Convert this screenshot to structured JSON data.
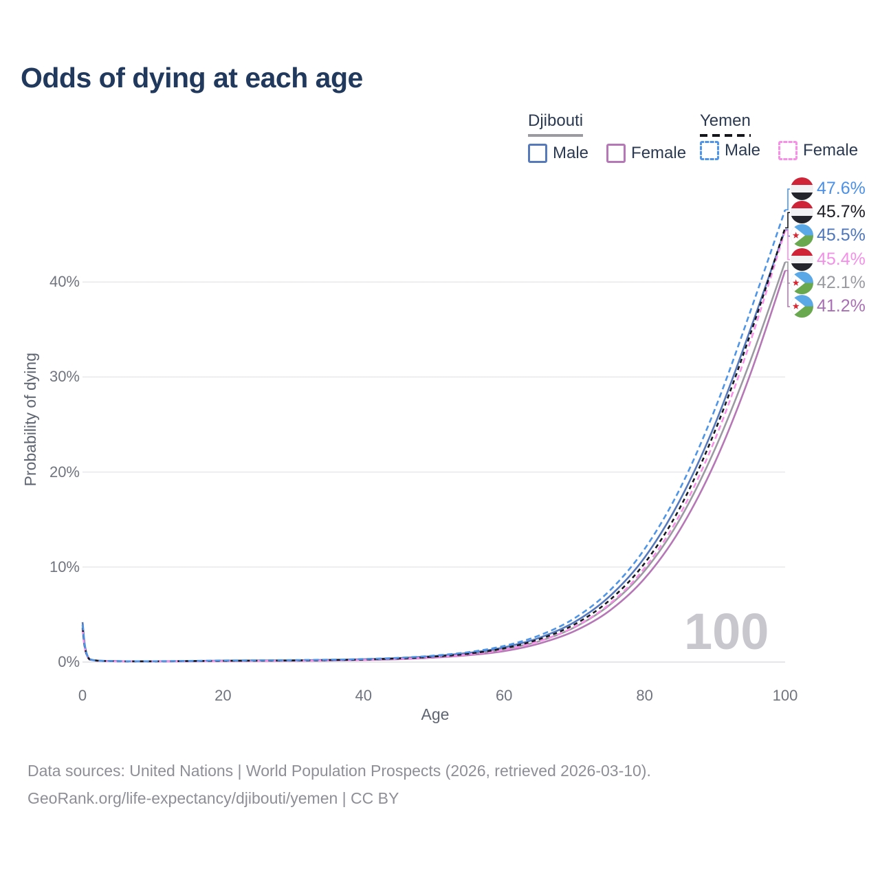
{
  "title": "Odds of dying at each age",
  "legend": {
    "groups": [
      {
        "label": "Djibouti",
        "line_style": "solid",
        "underline_color": "#9a9aa0",
        "items": [
          {
            "label": "Male",
            "color": "#5579bb"
          },
          {
            "label": "Female",
            "color": "#b577b5"
          }
        ]
      },
      {
        "label": "Yemen",
        "line_style": "dashed",
        "underline_color": "#15151c",
        "items": [
          {
            "label": "Male",
            "color": "#4e95e8"
          },
          {
            "label": "Female",
            "color": "#f78fe7"
          }
        ]
      }
    ]
  },
  "watermark": "100",
  "footer": {
    "line1": "Data sources: United Nations | World Population Prospects (2026, retrieved 2026-03-10).",
    "line2": "GeoRank.org/life-expectancy/djibouti/yemen | CC BY"
  },
  "chart_data": {
    "type": "line",
    "title": "Odds of dying at each age",
    "xlabel": "Age",
    "ylabel": "Probability of dying",
    "xlim": [
      0,
      100
    ],
    "ylim_pct": [
      0,
      48
    ],
    "x_ticks": [
      0,
      20,
      40,
      60,
      80,
      100
    ],
    "y_ticks_pct": [
      0,
      10,
      20,
      30,
      40
    ],
    "y_tick_labels": [
      "0%",
      "10%",
      "20%",
      "30%",
      "40%"
    ],
    "grid": "horizontal",
    "legend_position": "top-right",
    "ages": [
      0,
      1,
      5,
      10,
      15,
      20,
      25,
      30,
      35,
      40,
      45,
      50,
      55,
      60,
      65,
      70,
      75,
      80,
      85,
      90,
      95,
      100
    ],
    "series": [
      {
        "name": "Yemen Male",
        "country": "Yemen",
        "sex": "male",
        "flag": "yemen",
        "line_color": "#4e95e8",
        "label_color": "#4a90e8",
        "dash": "8 5",
        "end_label": "47.6%",
        "end_value_pct": 47.6,
        "values_pct": [
          3.9,
          0.3,
          0.1,
          0.09,
          0.12,
          0.17,
          0.19,
          0.21,
          0.25,
          0.32,
          0.45,
          0.68,
          1.05,
          1.7,
          2.8,
          4.6,
          7.5,
          11.9,
          18.2,
          26.6,
          36.8,
          47.6
        ]
      },
      {
        "name": "Yemen Both sexes",
        "country": "Yemen",
        "sex": "both",
        "flag": "yemen",
        "line_color": "#17171f",
        "label_color": "#1b1b22",
        "dash": "6 5",
        "end_label": "45.7%",
        "end_value_pct": 45.7,
        "values_pct": [
          3.6,
          0.28,
          0.09,
          0.08,
          0.1,
          0.13,
          0.15,
          0.17,
          0.21,
          0.27,
          0.38,
          0.57,
          0.89,
          1.45,
          2.4,
          3.95,
          6.5,
          10.4,
          16.2,
          24.3,
          34.4,
          45.7
        ]
      },
      {
        "name": "Djibouti Male",
        "country": "Djibouti",
        "sex": "male",
        "flag": "djibouti",
        "line_color": "#5579bb",
        "label_color": "#4d76bd",
        "dash": null,
        "end_label": "45.5%",
        "end_value_pct": 45.5,
        "values_pct": [
          4.2,
          0.32,
          0.11,
          0.09,
          0.11,
          0.15,
          0.17,
          0.19,
          0.23,
          0.3,
          0.42,
          0.63,
          0.97,
          1.55,
          2.55,
          4.2,
          6.9,
          11.0,
          17.0,
          25.0,
          34.9,
          45.5
        ]
      },
      {
        "name": "Yemen Female",
        "country": "Yemen",
        "sex": "female",
        "flag": "yemen",
        "line_color": "#f78fe7",
        "label_color": "#f48fe8",
        "dash": "8 5",
        "end_label": "45.4%",
        "end_value_pct": 45.4,
        "values_pct": [
          3.3,
          0.26,
          0.08,
          0.07,
          0.08,
          0.1,
          0.12,
          0.14,
          0.17,
          0.23,
          0.33,
          0.5,
          0.8,
          1.3,
          2.2,
          3.7,
          6.1,
          9.9,
          15.5,
          23.4,
          33.6,
          45.4
        ]
      },
      {
        "name": "Djibouti Both sexes",
        "country": "Djibouti",
        "sex": "both",
        "flag": "djibouti",
        "line_color": "#9a9aa0",
        "label_color": "#999aa0",
        "dash": null,
        "end_label": "42.1%",
        "end_value_pct": 42.1,
        "values_pct": [
          3.9,
          0.3,
          0.1,
          0.08,
          0.1,
          0.13,
          0.15,
          0.17,
          0.2,
          0.26,
          0.36,
          0.54,
          0.84,
          1.35,
          2.2,
          3.65,
          6.0,
          9.6,
          15.0,
          22.4,
          31.6,
          42.1
        ]
      },
      {
        "name": "Djibouti Female",
        "country": "Djibouti",
        "sex": "female",
        "flag": "djibouti",
        "line_color": "#b577b5",
        "label_color": "#a96fb4",
        "dash": null,
        "end_label": "41.2%",
        "end_value_pct": 41.2,
        "values_pct": [
          3.5,
          0.27,
          0.09,
          0.07,
          0.08,
          0.1,
          0.12,
          0.13,
          0.16,
          0.21,
          0.3,
          0.46,
          0.72,
          1.15,
          1.95,
          3.25,
          5.4,
          8.8,
          13.9,
          21.0,
          30.2,
          41.2
        ]
      }
    ]
  }
}
